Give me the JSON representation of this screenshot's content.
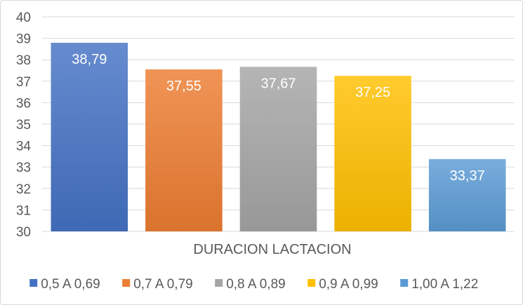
{
  "chart_data": {
    "type": "bar",
    "title": "",
    "xlabel": "DURACION LACTACION",
    "ylabel": "",
    "ylim": [
      30,
      40
    ],
    "yticks": [
      30,
      31,
      32,
      33,
      34,
      35,
      36,
      37,
      38,
      39,
      40
    ],
    "grid": true,
    "legend_position": "bottom",
    "series": [
      {
        "name": "0,5 A 0,69",
        "value": 38.79,
        "label": "38,79",
        "color": "#4472c4"
      },
      {
        "name": "0,7 A 0,79",
        "value": 37.55,
        "label": "37,55",
        "color": "#ed7d31"
      },
      {
        "name": "0,8 A 0,89",
        "value": 37.67,
        "label": "37,67",
        "color": "#a5a5a5"
      },
      {
        "name": "0,9 A 0,99",
        "value": 37.25,
        "label": "37,25",
        "color": "#ffc000"
      },
      {
        "name": "1,00 A 1,22",
        "value": 33.37,
        "label": "33,37",
        "color": "#5b9bd5"
      }
    ]
  }
}
